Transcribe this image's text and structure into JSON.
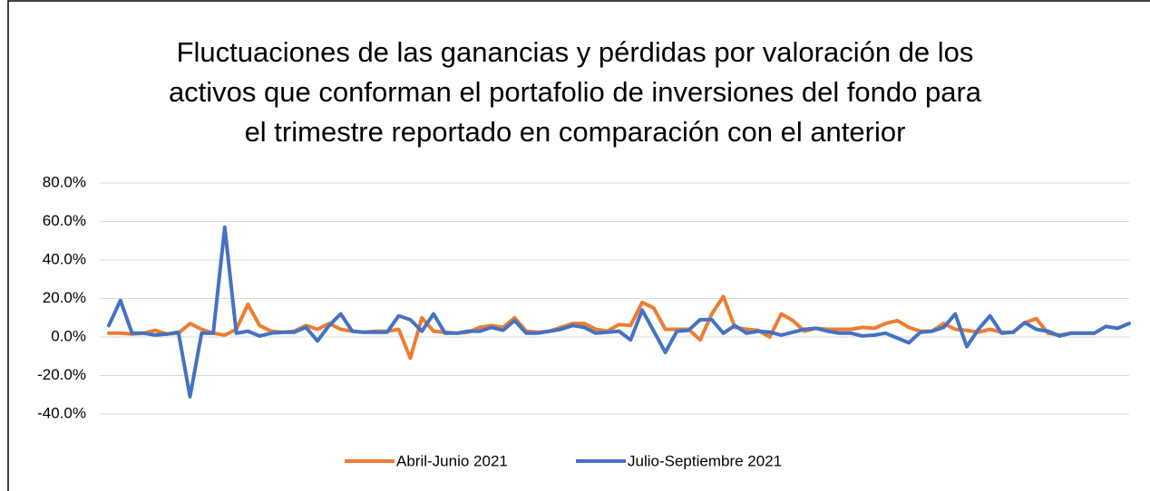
{
  "chart_data": {
    "type": "line",
    "title": [
      "Fluctuaciones de las ganancias y pérdidas por valoración de los",
      "activos que conforman el portafolio de inversiones del fondo para",
      "el trimestre reportado en comparación con el anterior"
    ],
    "categories": [
      null,
      null,
      null,
      null,
      null,
      null,
      null,
      null,
      null,
      null,
      null,
      null,
      null,
      null,
      null,
      null,
      null,
      null,
      null,
      null,
      null,
      null,
      null,
      null,
      null,
      null,
      null,
      null,
      null,
      null,
      null,
      null,
      null,
      null,
      null,
      null,
      null,
      null,
      null,
      null,
      null,
      null,
      null,
      null,
      null,
      null,
      null,
      null,
      null,
      null,
      null,
      null,
      null,
      null,
      null,
      null,
      null,
      null,
      null,
      null,
      null,
      null,
      null,
      null,
      null,
      null,
      null,
      null,
      null,
      null,
      null,
      null,
      null,
      null,
      null,
      null,
      null,
      null,
      null,
      null,
      null,
      null,
      null,
      null,
      null,
      null,
      null,
      null,
      null
    ],
    "series": [
      {
        "name": "Abril-Junio 2021",
        "color": "#ed7d31",
        "values": [
          2,
          2,
          1.5,
          2,
          3.5,
          1.5,
          2,
          7,
          4,
          2,
          1,
          4,
          17,
          6,
          3,
          2.5,
          3,
          6,
          4,
          7,
          4,
          3,
          2.5,
          3,
          3,
          4,
          -11,
          10,
          3,
          2.5,
          2,
          2.5,
          5,
          6,
          5,
          10,
          3,
          2.5,
          3,
          5,
          7,
          7,
          4,
          3,
          6.5,
          6,
          18,
          15,
          4,
          4,
          4,
          -1.5,
          12,
          21,
          5,
          4,
          3.5,
          0,
          12,
          8.5,
          3,
          4.5,
          4,
          4,
          4,
          5,
          4.5,
          7,
          8.5,
          5,
          3,
          3,
          7,
          4,
          3.5,
          2.5,
          4,
          2.5,
          2.5,
          7.5,
          9.5,
          2,
          1,
          2,
          2,
          2,
          null,
          null,
          null
        ]
      },
      {
        "name": "Julio-Septiembre 2021",
        "color": "#4472c4",
        "values": [
          6,
          19,
          2,
          2,
          1,
          1.5,
          2.5,
          -31,
          2,
          2,
          57,
          2,
          3,
          0.5,
          2,
          2.5,
          2.5,
          5,
          -2,
          6,
          12,
          3,
          2.5,
          2.5,
          2.5,
          11,
          9,
          3,
          12,
          2,
          2,
          3,
          3,
          5,
          3.5,
          8.5,
          2,
          2,
          3,
          4,
          6,
          5,
          2,
          2.5,
          3,
          -1.5,
          14,
          3,
          -8,
          3,
          3.5,
          9,
          9,
          2,
          6,
          2,
          3,
          2.5,
          1,
          2.5,
          4,
          4.5,
          3,
          2,
          2,
          0.5,
          1,
          2,
          -0.5,
          -3,
          2.5,
          3,
          5,
          12,
          -5,
          4,
          11,
          2,
          2.5,
          7.5,
          4,
          3,
          0.5,
          2,
          2,
          2,
          5.5,
          4.5,
          7
        ]
      }
    ],
    "ylim": [
      -40,
      80
    ],
    "yticks": [
      {
        "value": -40,
        "label": "-40.0%"
      },
      {
        "value": -20,
        "label": "-20.0%"
      },
      {
        "value": 0,
        "label": "0.0%"
      },
      {
        "value": 20,
        "label": "20.0%"
      },
      {
        "value": 40,
        "label": "40.0%"
      },
      {
        "value": 60,
        "label": "60.0%"
      },
      {
        "value": 80,
        "label": "80.0%"
      }
    ],
    "grid": true,
    "legend": "bottom"
  }
}
